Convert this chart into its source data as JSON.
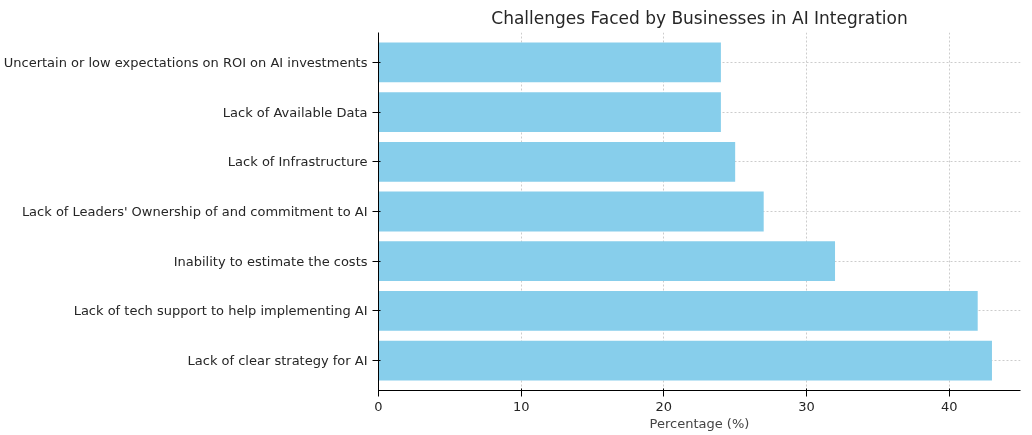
{
  "chart_data": {
    "type": "bar",
    "orientation": "horizontal",
    "title": "Challenges Faced by Businesses in AI Integration",
    "xlabel": "Percentage (%)",
    "categories": [
      "Uncertain or low expectations on ROI on AI investments",
      "Lack of Available Data",
      "Lack of Infrastructure",
      "Lack of Leaders' Ownership of and commitment to AI",
      "Inability to estimate the costs",
      "Lack of tech support to help implementing AI",
      "Lack of clear strategy for AI"
    ],
    "values": [
      24,
      24,
      25,
      27,
      32,
      42,
      43
    ],
    "color": "#87ceeb",
    "xlim": [
      0,
      45
    ],
    "xticks": [
      0,
      10,
      20,
      30,
      40
    ],
    "grid": true
  }
}
